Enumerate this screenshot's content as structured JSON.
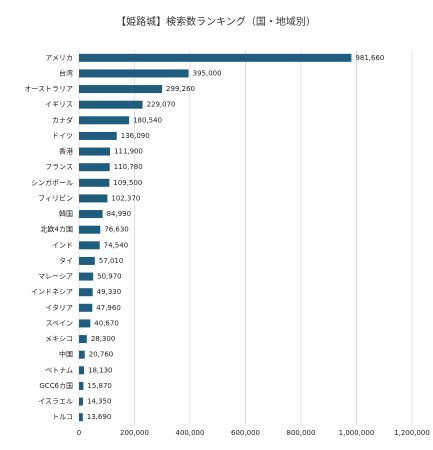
{
  "chart_data": {
    "type": "hbar",
    "title": "【姫路城】検索数ランキング（国・地域別）",
    "categories": [
      "アメリカ",
      "台湾",
      "オーストラリア",
      "イギリス",
      "カナダ",
      "ドイツ",
      "香港",
      "フランス",
      "シンガポール",
      "フィリピン",
      "韓国",
      "北欧4カ国",
      "インド",
      "タイ",
      "マレーシア",
      "インドネシア",
      "イタリア",
      "スペイン",
      "メキシコ",
      "中国",
      "ベトナム",
      "GCC6カ国",
      "イスラエル",
      "トルコ"
    ],
    "values": [
      981660,
      395000,
      299260,
      229070,
      180540,
      136090,
      111900,
      110780,
      109500,
      102370,
      84990,
      76630,
      74540,
      57010,
      50970,
      49330,
      47960,
      40670,
      28300,
      20760,
      18130,
      15870,
      14350,
      13690
    ],
    "value_labels": [
      "981,660",
      "395,000",
      "299,260",
      "229,070",
      "180,540",
      "136,090",
      "111,900",
      "110,780",
      "109,500",
      "102,370",
      "84,990",
      "76,630",
      "74,540",
      "57,010",
      "50,970",
      "49,330",
      "47,960",
      "40,670",
      "28,300",
      "20,760",
      "18,130",
      "15,870",
      "14,350",
      "13,690"
    ],
    "color": "#1f5d7e",
    "xlim": [
      0,
      1200000
    ],
    "xticks": [
      0,
      {
        "value": 200000,
        "label": "200,000"
      },
      {
        "value": 400000,
        "label": "400,000"
      },
      {
        "value": 600000,
        "label": "600,000"
      },
      {
        "value": 800000,
        "label": "800,000"
      },
      {
        "value": 1000000,
        "label": "1,000,000"
      },
      {
        "value": 1200000,
        "label": "1,200,000"
      }
    ],
    "grid": true
  }
}
